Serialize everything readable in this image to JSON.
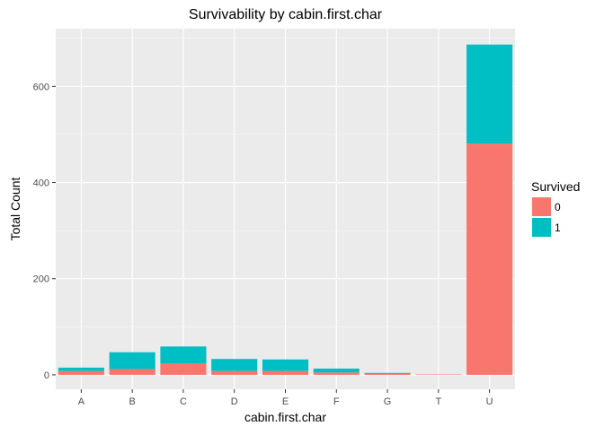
{
  "chart_data": {
    "type": "bar",
    "stacked": true,
    "title": "Survivability by cabin.first.char",
    "xlabel": "cabin.first.char",
    "ylabel": "Total Count",
    "categories": [
      "A",
      "B",
      "C",
      "D",
      "E",
      "F",
      "G",
      "T",
      "U"
    ],
    "series": [
      {
        "name": "0",
        "color": "#F8766D",
        "values": [
          8,
          12,
          24,
          8,
          8,
          5,
          2,
          1,
          481
        ]
      },
      {
        "name": "1",
        "color": "#00BFC4",
        "values": [
          7,
          35,
          35,
          25,
          24,
          8,
          2,
          0,
          206
        ]
      }
    ],
    "ylim": [
      -30,
      720
    ],
    "yticks": [
      0,
      200,
      400,
      600
    ],
    "grid": true,
    "legend": {
      "title": "Survived",
      "position": "right"
    },
    "colors": {
      "panel_background": "#EBEBEB",
      "grid_major": "#FFFFFF",
      "axis_text": "#4D4D4D"
    }
  }
}
